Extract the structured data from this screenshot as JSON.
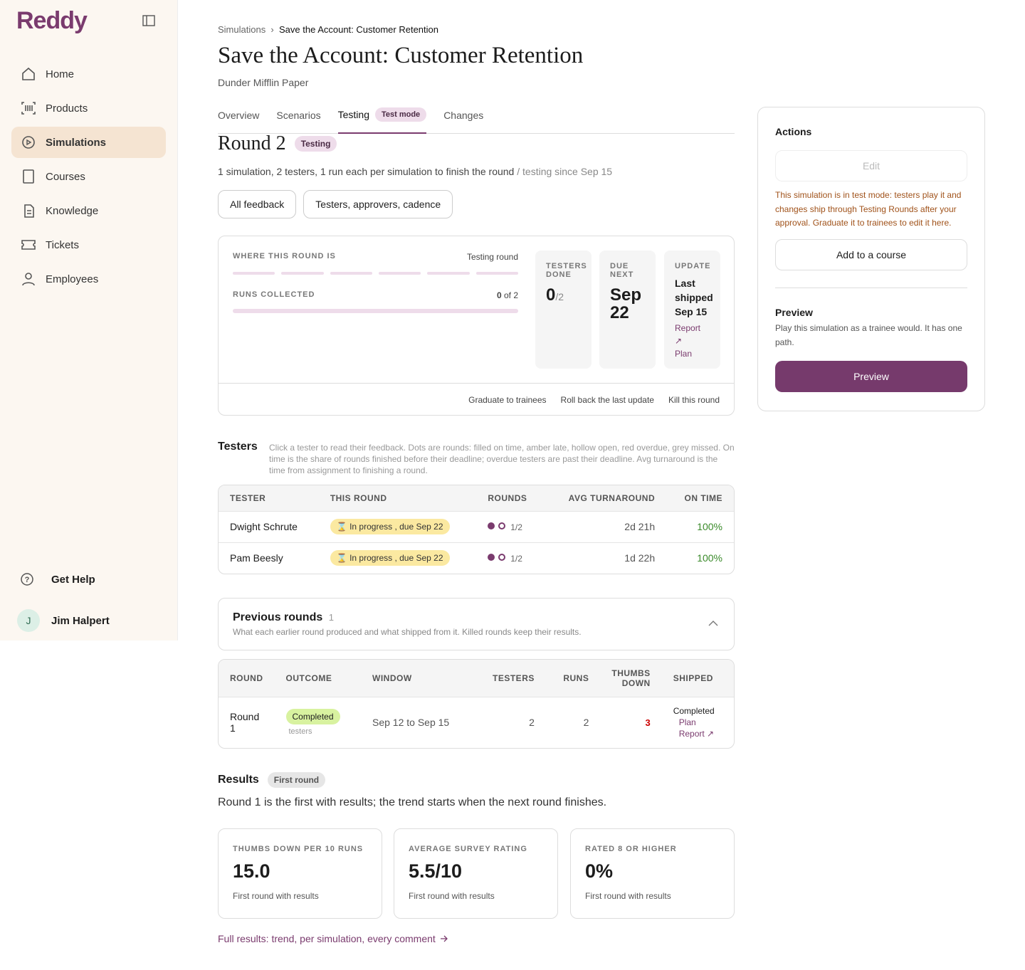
{
  "sidebar": {
    "logo": "Reddy",
    "nav": [
      "Home",
      "Products",
      "Simulations",
      "Courses",
      "Knowledge",
      "Tickets",
      "Employees"
    ],
    "help": "Get Help",
    "user_initial": "J",
    "user_name": "Jim Halpert"
  },
  "breadcrumb": [
    "Simulations",
    "Save the Account: Customer Retention"
  ],
  "header": {
    "title": "Save the Account: Customer Retention",
    "subtitle": "Dunder Mifflin Paper"
  },
  "tabs": [
    "Overview",
    "Scenarios",
    "Testing",
    "Changes"
  ],
  "tab_badge": "Test mode",
  "round": {
    "title": "Round 2",
    "badge": "Testing",
    "summary": "1 simulation, 2 testers, 1 run each per simulation to finish the round",
    "since": "/ testing since Sep 15",
    "buttons": [
      "All feedback",
      "Testers, approvers, cadence"
    ]
  },
  "status": {
    "where_label": "WHERE THIS ROUND IS",
    "where_value": "Testing round",
    "runs_label": "RUNS COLLECTED",
    "runs_count": "0",
    "runs_of": "of 2",
    "testers_label": "TESTERS DONE",
    "testers_value": "0",
    "testers_total": "/2",
    "due_label": "DUE NEXT",
    "due_value": "Sep 22",
    "update_label": "UPDATE",
    "update_value": "Last shipped Sep 15",
    "update_links": [
      "Report",
      "Plan"
    ],
    "actions": [
      "Graduate to trainees",
      "Roll back the last update",
      "Kill this round"
    ]
  },
  "testers": {
    "title": "Testers",
    "note": "Click a tester to read their feedback. Dots are rounds: filled on time, amber late, hollow open, red overdue, grey missed. On time is the share of rounds finished before their deadline; overdue testers are past their deadline. Avg turnaround is the time from assignment to finishing a round.",
    "columns": [
      "TESTER",
      "THIS ROUND",
      "ROUNDS",
      "AVG TURNAROUND",
      "ON TIME"
    ],
    "rows": [
      [
        "Dwight Schrute",
        "In progress , due Sep 22",
        "1/2",
        "2d 21h",
        "100%"
      ],
      [
        "Pam Beesly",
        "In progress , due Sep 22",
        "1/2",
        "1d 22h",
        "100%"
      ]
    ]
  },
  "previous": {
    "title": "Previous rounds",
    "count": "1",
    "note": "What each earlier round produced and what shipped from it. Killed rounds keep their results.",
    "columns": [
      "ROUND",
      "OUTCOME",
      "WINDOW",
      "TESTERS",
      "RUNS",
      "THUMBS DOWN",
      "SHIPPED"
    ],
    "rows": [
      {
        "round": "Round 1",
        "outcome": "Completed",
        "outcome_sub": "testers",
        "window": "Sep 12 to Sep 15",
        "testers": "2",
        "runs": "2",
        "thumbs_down": "3",
        "shipped": "Completed",
        "links": [
          "Plan",
          "Report"
        ]
      }
    ]
  },
  "results": {
    "title": "Results",
    "badge": "First round",
    "note": "Round 1 is the first with results; the trend starts when the next round finishes.",
    "cards": [
      {
        "label": "THUMBS DOWN PER 10 RUNS",
        "value": "15.0",
        "sub": "First round with results"
      },
      {
        "label": "AVERAGE SURVEY RATING",
        "value": "5.5/10",
        "sub": "First round with results"
      },
      {
        "label": "RATED 8 OR HIGHER",
        "value": "0%",
        "sub": "First round with results"
      }
    ],
    "link": "Full results: trend, per simulation, every comment"
  },
  "actions_panel": {
    "title": "Actions",
    "edit": "Edit",
    "note": "This simulation is in test mode: testers play it and changes ship through Testing Rounds after your approval. Graduate it to trainees to edit it here.",
    "add": "Add to a course",
    "preview_title": "Preview",
    "preview_note": "Play this simulation as a trainee would. It has one path.",
    "preview_button": "Preview"
  }
}
